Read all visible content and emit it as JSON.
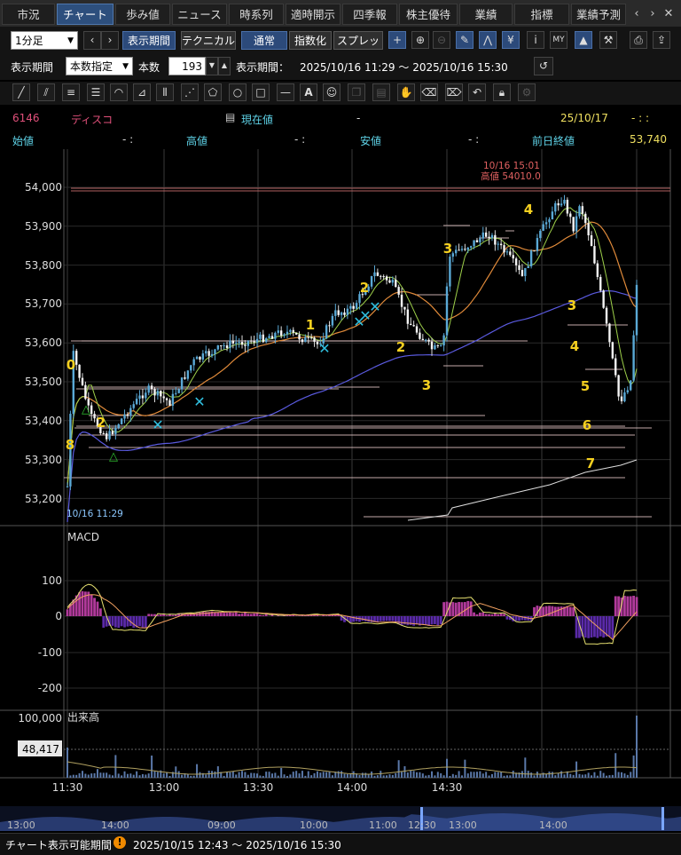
{
  "tabs": [
    "市況",
    "チャート",
    "歩み値",
    "ニュース",
    "時系列",
    "適時開示",
    "四季報",
    "株主優待",
    "業績",
    "指標",
    "業績予測"
  ],
  "active_tab": "チャート",
  "toolbar": {
    "interval": "1分足",
    "period_button": "表示期間",
    "technical_button": "テクニカル",
    "normal_button": "通常",
    "index_button": "指数化",
    "spread_button": "スプレッド"
  },
  "period_row": {
    "label": "表示期間",
    "mode": "本数指定",
    "count_label": "本数",
    "count_value": "193",
    "range_label": "表示期間：",
    "range_value": "2025/10/16 11:29 ～ 2025/10/16 15:30"
  },
  "stock": {
    "code": "6146",
    "name": "ディスコ",
    "current_label": "現在値",
    "current_value": "-",
    "date": "25/10/17",
    "time": "- :  :",
    "open_label": "始値",
    "open_value": "-  :",
    "high_label": "高値",
    "high_value": "-  :",
    "low_label": "安値",
    "low_value": "-  :",
    "prev_close_label": "前日終値",
    "prev_close_value": "53,740"
  },
  "colors": {
    "code": "#e0507a",
    "name": "#e0507a",
    "label_cyan": "#5fd3e8",
    "annotation_yellow": "#f5d020",
    "macd_bar": "#b03a9a",
    "macd_neg": "#5a2aa8",
    "sma_long": "#5a5adf",
    "sma_mid": "#e08a3a",
    "candle_up": "#5aa9d6",
    "candle_down": "#ffffff"
  },
  "chart_data": {
    "type": "candlestick",
    "price_axis": [
      "54,000",
      "53,900",
      "53,800",
      "53,700",
      "53,600",
      "53,500",
      "53,400",
      "53,300",
      "53,200"
    ],
    "time_axis": [
      "11:30",
      "13:00",
      "13:30",
      "14:00",
      "14:30"
    ],
    "high_annotation": [
      "10/16 15:01",
      "高値 54010.0"
    ],
    "start_annotation": "10/16 11:29",
    "wave_labels": [
      "0",
      "2",
      "8",
      "1",
      "2",
      "2",
      "3",
      "3",
      "4",
      "3",
      "4",
      "5",
      "6",
      "7"
    ],
    "macd_label": "MACD",
    "macd_axis": [
      "100",
      "0",
      "-100",
      "-200"
    ],
    "volume_label": "出来高",
    "volume_axis": [
      "100,000"
    ],
    "volume_value": "48,417"
  },
  "navigator": {
    "ticks": [
      "13:00",
      "14:00",
      "09:00",
      "10:00",
      "11:00",
      "12:30",
      "13:00",
      "14:00"
    ]
  },
  "footer": {
    "label": "チャート表示可能期間",
    "range": "2025/10/15 12:43 ～ 2025/10/16 15:30"
  }
}
